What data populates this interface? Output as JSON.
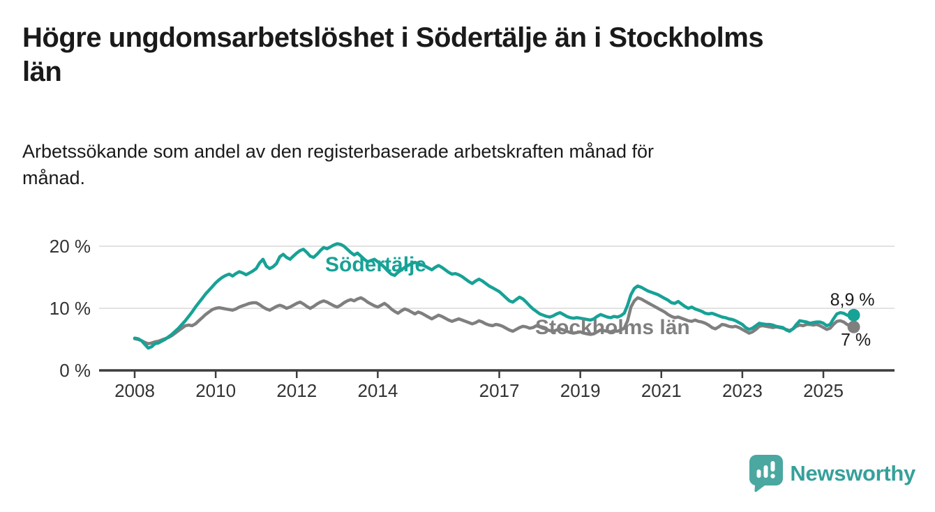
{
  "header": {
    "title": "Högre ungdomsarbetslöshet i Södertälje än i Stockholms\nlän",
    "subtitle": "Arbetssökande som andel av den registerbaserade arbetskraften månad för\nmånad."
  },
  "footer": {
    "brand": "Newsworthy",
    "logo_icon": "bar-chart-speech-bubble-icon"
  },
  "colors": {
    "sodertalje": "#17a296",
    "stockholm": "#7f7f7f",
    "axis": "#3d3d3d",
    "grid": "#d9d9d9",
    "annotation_text": "#1a1a1a",
    "brand_teal": "#36a09a",
    "brand_icon_teal": "#4aa8a1"
  },
  "chart_data": {
    "type": "line",
    "title": "Högre ungdomsarbetslöshet i Södertälje än i Stockholms län",
    "subtitle": "Arbetssökande som andel av den registerbaserade arbetskraften månad för månad.",
    "unit": "%",
    "x_start": "2008-01",
    "x_end": "2025-10",
    "points_per_year": 12,
    "x_ticks": [
      2008,
      2010,
      2012,
      2014,
      2017,
      2019,
      2021,
      2023,
      2025
    ],
    "y_ticks": [
      {
        "value": 0,
        "label": "0 %"
      },
      {
        "value": 10,
        "label": "10 %"
      },
      {
        "value": 20,
        "label": "20 %"
      }
    ],
    "ylim": [
      0,
      22.5
    ],
    "grid": "horizontal",
    "legend_position": "inline-labels",
    "series": [
      {
        "name": "Södertälje",
        "color": "#17a296",
        "end_label": "8,9 %",
        "end_value": 8.9,
        "values": [
          5.2,
          5.1,
          4.8,
          4.2,
          3.6,
          3.8,
          4.3,
          4.4,
          4.7,
          5.0,
          5.4,
          5.8,
          6.3,
          6.8,
          7.4,
          8.0,
          8.7,
          9.4,
          10.2,
          10.9,
          11.6,
          12.3,
          12.9,
          13.5,
          14.1,
          14.6,
          15.0,
          15.3,
          15.5,
          15.2,
          15.6,
          15.9,
          15.7,
          15.4,
          15.7,
          16.0,
          16.4,
          17.3,
          17.9,
          16.8,
          16.4,
          16.7,
          17.2,
          18.3,
          18.7,
          18.2,
          17.9,
          18.4,
          18.9,
          19.3,
          19.5,
          19.0,
          18.4,
          18.2,
          18.7,
          19.3,
          19.8,
          19.6,
          19.9,
          20.2,
          20.4,
          20.3,
          20.0,
          19.5,
          19.0,
          18.6,
          18.9,
          18.4,
          17.9,
          17.5,
          17.7,
          17.9,
          17.5,
          17.1,
          16.6,
          16.0,
          15.5,
          15.3,
          15.8,
          16.2,
          16.6,
          16.9,
          17.2,
          17.4,
          17.2,
          17.0,
          16.8,
          16.5,
          16.2,
          16.6,
          16.9,
          16.6,
          16.2,
          15.8,
          15.5,
          15.6,
          15.4,
          15.1,
          14.7,
          14.3,
          14.0,
          14.4,
          14.7,
          14.4,
          14.0,
          13.6,
          13.3,
          13.0,
          12.7,
          12.2,
          11.7,
          11.2,
          11.0,
          11.4,
          11.8,
          11.5,
          11.0,
          10.4,
          9.9,
          9.5,
          9.1,
          8.9,
          8.7,
          8.6,
          8.8,
          9.1,
          9.3,
          9.0,
          8.7,
          8.5,
          8.4,
          8.5,
          8.4,
          8.3,
          8.2,
          8.1,
          8.3,
          8.7,
          9.0,
          8.8,
          8.6,
          8.5,
          8.7,
          8.6,
          8.8,
          9.2,
          10.5,
          12.2,
          13.2,
          13.6,
          13.4,
          13.1,
          12.8,
          12.6,
          12.4,
          12.2,
          11.9,
          11.6,
          11.3,
          10.9,
          10.8,
          11.1,
          10.7,
          10.3,
          10.0,
          10.2,
          9.9,
          9.7,
          9.5,
          9.2,
          9.1,
          9.2,
          9.0,
          8.8,
          8.6,
          8.5,
          8.3,
          8.2,
          8.0,
          7.7,
          7.4,
          6.9,
          6.6,
          6.8,
          7.2,
          7.6,
          7.5,
          7.4,
          7.4,
          7.3,
          7.1,
          7.0,
          6.9,
          6.5,
          6.3,
          6.7,
          7.4,
          8.0,
          7.9,
          7.8,
          7.6,
          7.7,
          7.8,
          7.8,
          7.6,
          7.2,
          7.4,
          8.3,
          9.1,
          9.3,
          9.2,
          8.9,
          8.8,
          8.9
        ]
      },
      {
        "name": "Stockholms län",
        "color": "#7f7f7f",
        "end_label": "7 %",
        "end_value": 7.0,
        "values": [
          5.1,
          5.0,
          4.8,
          4.5,
          4.3,
          4.4,
          4.6,
          4.7,
          4.9,
          5.1,
          5.3,
          5.6,
          6.0,
          6.4,
          6.8,
          7.2,
          7.3,
          7.2,
          7.5,
          8.0,
          8.5,
          9.0,
          9.4,
          9.8,
          10.0,
          10.1,
          10.0,
          9.9,
          9.8,
          9.7,
          9.9,
          10.2,
          10.4,
          10.6,
          10.8,
          10.9,
          10.9,
          10.6,
          10.2,
          9.9,
          9.7,
          10.0,
          10.3,
          10.5,
          10.3,
          10.0,
          10.2,
          10.5,
          10.8,
          11.0,
          10.7,
          10.3,
          10.0,
          10.3,
          10.7,
          11.0,
          11.2,
          11.0,
          10.7,
          10.4,
          10.2,
          10.5,
          10.9,
          11.2,
          11.4,
          11.2,
          11.5,
          11.7,
          11.4,
          11.0,
          10.7,
          10.4,
          10.2,
          10.5,
          10.8,
          10.4,
          9.9,
          9.5,
          9.2,
          9.6,
          9.9,
          9.7,
          9.4,
          9.1,
          9.4,
          9.2,
          8.9,
          8.6,
          8.3,
          8.6,
          8.9,
          8.7,
          8.4,
          8.1,
          7.9,
          8.1,
          8.3,
          8.1,
          7.9,
          7.7,
          7.5,
          7.7,
          8.0,
          7.8,
          7.5,
          7.3,
          7.2,
          7.4,
          7.3,
          7.1,
          6.8,
          6.5,
          6.3,
          6.6,
          6.9,
          7.1,
          7.0,
          6.8,
          6.9,
          7.2,
          7.0,
          6.8,
          6.6,
          6.4,
          6.3,
          6.5,
          6.7,
          6.5,
          6.3,
          6.1,
          6.0,
          6.1,
          6.2,
          6.0,
          5.9,
          5.8,
          5.9,
          6.2,
          6.5,
          6.4,
          6.3,
          6.2,
          6.4,
          6.3,
          6.5,
          6.8,
          8.0,
          10.2,
          11.2,
          11.7,
          11.5,
          11.2,
          10.9,
          10.6,
          10.3,
          10.0,
          9.7,
          9.4,
          9.0,
          8.7,
          8.5,
          8.6,
          8.4,
          8.2,
          8.0,
          7.9,
          8.1,
          7.9,
          7.8,
          7.6,
          7.3,
          6.9,
          6.7,
          7.0,
          7.4,
          7.3,
          7.1,
          7.0,
          7.1,
          6.9,
          6.6,
          6.3,
          6.0,
          6.2,
          6.6,
          7.1,
          7.2,
          7.1,
          7.0,
          6.9,
          7.0,
          6.9,
          6.8,
          6.6,
          6.4,
          6.7,
          7.1,
          7.3,
          7.2,
          7.4,
          7.4,
          7.3,
          7.4,
          7.2,
          6.9,
          6.6,
          6.8,
          7.4,
          7.9,
          8.0,
          7.8,
          7.4,
          7.2,
          7.0
        ]
      }
    ]
  }
}
